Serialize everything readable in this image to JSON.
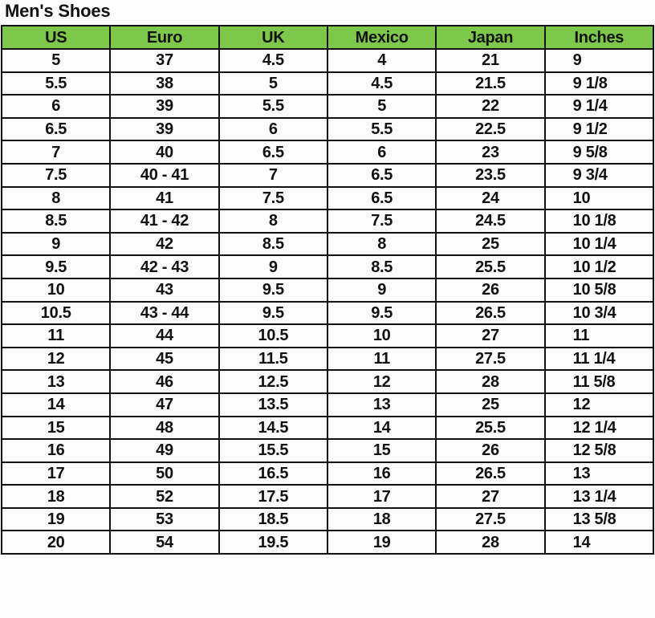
{
  "title": "Men's Shoes",
  "colors": {
    "header_bg": "#7dc84a",
    "border": "#111111"
  },
  "columns": [
    "US",
    "Euro",
    "UK",
    "Mexico",
    "Japan",
    "Inches"
  ],
  "rows": [
    [
      "5",
      "37",
      "4.5",
      "4",
      "21",
      "9"
    ],
    [
      "5.5",
      "38",
      "5",
      "4.5",
      "21.5",
      "9 1/8"
    ],
    [
      "6",
      "39",
      "5.5",
      "5",
      "22",
      "9 1/4"
    ],
    [
      "6.5",
      "39",
      "6",
      "5.5",
      "22.5",
      "9 1/2"
    ],
    [
      "7",
      "40",
      "6.5",
      "6",
      "23",
      "9 5/8"
    ],
    [
      "7.5",
      "40 - 41",
      "7",
      "6.5",
      "23.5",
      "9 3/4"
    ],
    [
      "8",
      "41",
      "7.5",
      "6.5",
      "24",
      "10"
    ],
    [
      "8.5",
      "41 - 42",
      "8",
      "7.5",
      "24.5",
      "10 1/8"
    ],
    [
      "9",
      "42",
      "8.5",
      "8",
      "25",
      "10 1/4"
    ],
    [
      "9.5",
      "42 - 43",
      "9",
      "8.5",
      "25.5",
      "10 1/2"
    ],
    [
      "10",
      "43",
      "9.5",
      "9",
      "26",
      "10 5/8"
    ],
    [
      "10.5",
      "43 - 44",
      "9.5",
      "9.5",
      "26.5",
      "10 3/4"
    ],
    [
      "11",
      "44",
      "10.5",
      "10",
      "27",
      "11"
    ],
    [
      "12",
      "45",
      "11.5",
      "11",
      "27.5",
      "11 1/4"
    ],
    [
      "13",
      "46",
      "12.5",
      "12",
      "28",
      "11 5/8"
    ],
    [
      "14",
      "47",
      "13.5",
      "13",
      "25",
      "12"
    ],
    [
      "15",
      "48",
      "14.5",
      "14",
      "25.5",
      "12 1/4"
    ],
    [
      "16",
      "49",
      "15.5",
      "15",
      "26",
      "12 5/8"
    ],
    [
      "17",
      "50",
      "16.5",
      "16",
      "26.5",
      "13"
    ],
    [
      "18",
      "52",
      "17.5",
      "17",
      "27",
      "13 1/4"
    ],
    [
      "19",
      "53",
      "18.5",
      "18",
      "27.5",
      "13 5/8"
    ],
    [
      "20",
      "54",
      "19.5",
      "19",
      "28",
      "14"
    ]
  ]
}
